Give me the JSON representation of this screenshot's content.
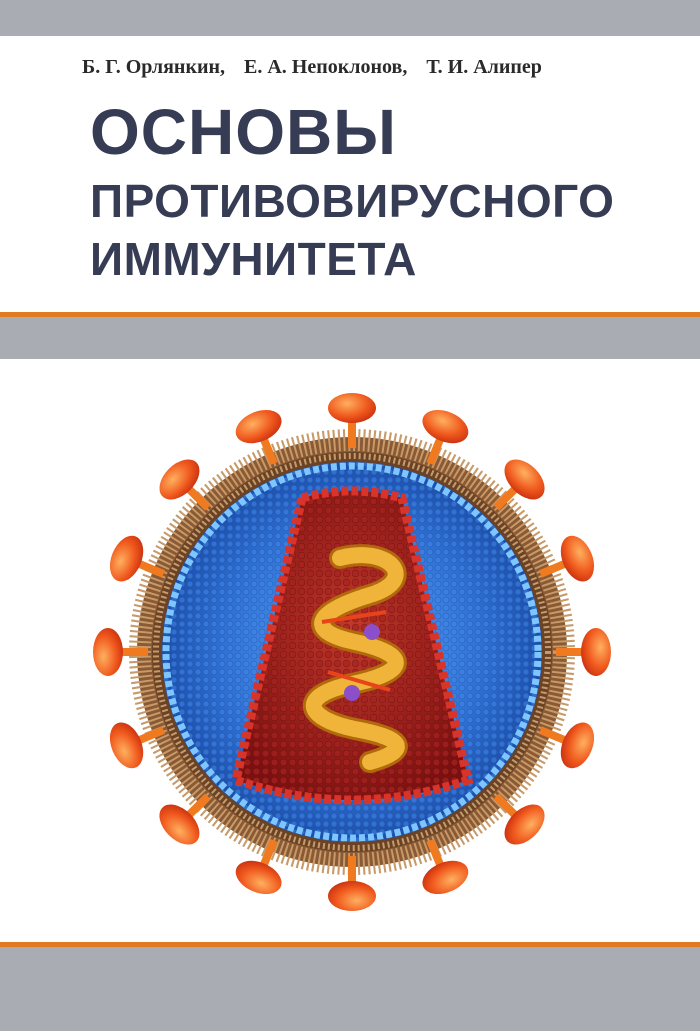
{
  "authors": [
    "Б. Г. Орлянкин,",
    "Е. А. Непоклонов,",
    "Т. И. Алипер"
  ],
  "title": {
    "line1": "ОСНОВЫ",
    "line2": "ПРОТИВОВИРУСНОГО",
    "line3": "ИММУНИТЕТА"
  },
  "illustration": "virus-particle-icon",
  "colors": {
    "band_gray": "#a9acb2",
    "accent_orange": "#e07b24",
    "title_color": "#373c55",
    "spike_red": "#e8441a",
    "capsid_blue": "#2f6fd0",
    "core_red": "#a31b1b",
    "helix_gold": "#e9a21e"
  }
}
